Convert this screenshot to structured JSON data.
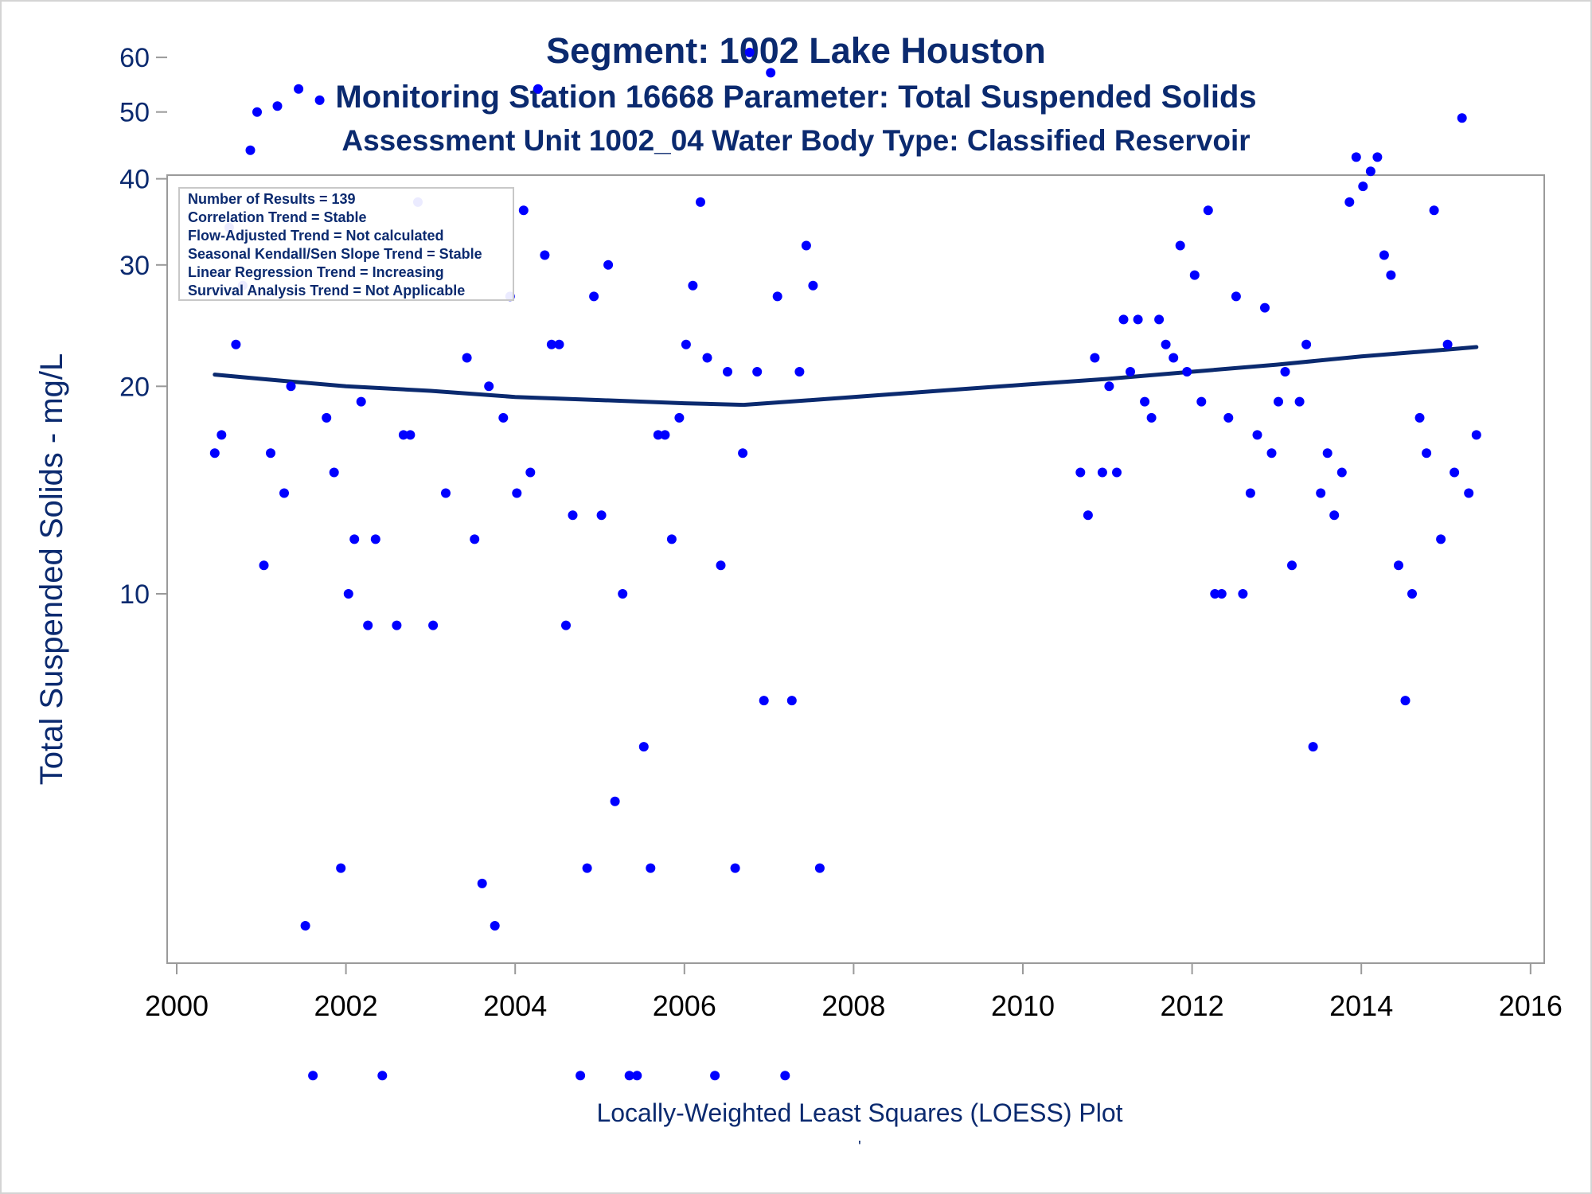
{
  "chart_data": {
    "type": "scatter",
    "title": "Segment: 1002  Lake Houston",
    "subtitle": "Monitoring Station 16668 Parameter: Total Suspended Solids",
    "subtitle2": "Assessment Unit 1002_04   Water Body Type: Classified Reservoir",
    "ylabel": "Total Suspended Solids - mg/L",
    "xlabel": "",
    "footnote": "Locally-Weighted Least Squares (LOESS) Plot",
    "footnote_mark": "'",
    "yscale": "log",
    "ylim": [
      2,
      60
    ],
    "xlim": [
      2000,
      2016.2
    ],
    "x_ticks": [
      "2000",
      "2002",
      "2004",
      "2006",
      "2008",
      "2010",
      "2012",
      "2014",
      "2016"
    ],
    "y_ticks": [
      "10",
      "20",
      "30",
      "40",
      "50",
      "60"
    ],
    "grid": false,
    "legend_position": "top-left",
    "stats_lines": [
      "Number of Results = 139",
      "Correlation Trend = Stable",
      "Flow-Adjusted Trend = Not calculated",
      "Seasonal Kendall/Sen Slope Trend = Stable",
      "Linear Regression Trend = Increasing",
      "Survival Analysis Trend = Not Applicable"
    ],
    "colors": {
      "points": "#0000ff",
      "loess": "#0b2a6f",
      "text": "#0b2a6f",
      "axis": "#9a9a9a"
    },
    "points": [
      [
        2000.45,
        16
      ],
      [
        2000.53,
        17
      ],
      [
        2000.62,
        34
      ],
      [
        2000.7,
        23
      ],
      [
        2000.78,
        28
      ],
      [
        2000.87,
        44
      ],
      [
        2000.95,
        50
      ],
      [
        2001.03,
        11
      ],
      [
        2001.11,
        16
      ],
      [
        2001.19,
        51
      ],
      [
        2001.27,
        14
      ],
      [
        2001.35,
        20
      ],
      [
        2001.44,
        54
      ],
      [
        2001.52,
        3.3
      ],
      [
        2001.61,
        2
      ],
      [
        2001.69,
        52
      ],
      [
        2001.77,
        18
      ],
      [
        2001.86,
        15
      ],
      [
        2001.94,
        4
      ],
      [
        2002.03,
        10
      ],
      [
        2002.1,
        12
      ],
      [
        2002.18,
        19
      ],
      [
        2002.26,
        9
      ],
      [
        2002.35,
        12
      ],
      [
        2002.43,
        2
      ],
      [
        2002.6,
        9
      ],
      [
        2002.68,
        17
      ],
      [
        2002.76,
        17
      ],
      [
        2002.85,
        37
      ],
      [
        2003.03,
        9
      ],
      [
        2003.18,
        14
      ],
      [
        2003.43,
        22
      ],
      [
        2003.52,
        12
      ],
      [
        2003.61,
        3.8
      ],
      [
        2003.69,
        20
      ],
      [
        2003.76,
        3.3
      ],
      [
        2003.86,
        18
      ],
      [
        2003.94,
        27
      ],
      [
        2004.02,
        14
      ],
      [
        2004.1,
        36
      ],
      [
        2004.18,
        15
      ],
      [
        2004.27,
        54
      ],
      [
        2004.35,
        31
      ],
      [
        2004.43,
        23
      ],
      [
        2004.52,
        23
      ],
      [
        2004.6,
        9
      ],
      [
        2004.68,
        13
      ],
      [
        2004.77,
        2
      ],
      [
        2004.85,
        4
      ],
      [
        2004.93,
        27
      ],
      [
        2005.02,
        13
      ],
      [
        2005.1,
        30
      ],
      [
        2005.18,
        5
      ],
      [
        2005.27,
        10
      ],
      [
        2005.35,
        2
      ],
      [
        2005.44,
        2
      ],
      [
        2005.52,
        6
      ],
      [
        2005.6,
        4
      ],
      [
        2005.69,
        17
      ],
      [
        2005.77,
        17
      ],
      [
        2005.85,
        12
      ],
      [
        2005.94,
        18
      ],
      [
        2006.02,
        23
      ],
      [
        2006.1,
        28
      ],
      [
        2006.19,
        37
      ],
      [
        2006.27,
        22
      ],
      [
        2006.36,
        2
      ],
      [
        2006.43,
        11
      ],
      [
        2006.51,
        21
      ],
      [
        2006.6,
        4
      ],
      [
        2006.69,
        16
      ],
      [
        2006.77,
        61
      ],
      [
        2006.86,
        21
      ],
      [
        2006.94,
        7
      ],
      [
        2007.02,
        57
      ],
      [
        2007.1,
        27
      ],
      [
        2007.19,
        2
      ],
      [
        2007.27,
        7
      ],
      [
        2007.36,
        21
      ],
      [
        2007.44,
        32
      ],
      [
        2007.52,
        28
      ],
      [
        2007.6,
        4
      ],
      [
        2010.68,
        15
      ],
      [
        2010.77,
        13
      ],
      [
        2010.85,
        22
      ],
      [
        2010.94,
        15
      ],
      [
        2011.02,
        20
      ],
      [
        2011.11,
        15
      ],
      [
        2011.19,
        25
      ],
      [
        2011.27,
        21
      ],
      [
        2011.36,
        25
      ],
      [
        2011.44,
        19
      ],
      [
        2011.52,
        18
      ],
      [
        2011.61,
        25
      ],
      [
        2011.69,
        23
      ],
      [
        2011.78,
        22
      ],
      [
        2011.86,
        32
      ],
      [
        2011.94,
        21
      ],
      [
        2012.03,
        29
      ],
      [
        2012.11,
        19
      ],
      [
        2012.19,
        36
      ],
      [
        2012.27,
        10
      ],
      [
        2012.35,
        10
      ],
      [
        2012.43,
        18
      ],
      [
        2012.52,
        27
      ],
      [
        2012.6,
        10
      ],
      [
        2012.69,
        14
      ],
      [
        2012.77,
        17
      ],
      [
        2012.86,
        26
      ],
      [
        2012.94,
        16
      ],
      [
        2013.02,
        19
      ],
      [
        2013.1,
        21
      ],
      [
        2013.18,
        11
      ],
      [
        2013.27,
        19
      ],
      [
        2013.35,
        23
      ],
      [
        2013.43,
        6
      ],
      [
        2013.52,
        14
      ],
      [
        2013.6,
        16
      ],
      [
        2013.68,
        13
      ],
      [
        2013.77,
        15
      ],
      [
        2013.86,
        37
      ],
      [
        2013.94,
        43
      ],
      [
        2014.02,
        39
      ],
      [
        2014.11,
        41
      ],
      [
        2014.19,
        43
      ],
      [
        2014.27,
        31
      ],
      [
        2014.35,
        29
      ],
      [
        2014.44,
        11
      ],
      [
        2014.52,
        7
      ],
      [
        2014.6,
        10
      ],
      [
        2014.69,
        18
      ],
      [
        2014.77,
        16
      ],
      [
        2014.86,
        36
      ],
      [
        2014.94,
        12
      ],
      [
        2015.02,
        23
      ],
      [
        2015.1,
        15
      ],
      [
        2015.19,
        49
      ],
      [
        2015.27,
        14
      ],
      [
        2015.36,
        17
      ]
    ],
    "loess": [
      [
        2000.45,
        20.8
      ],
      [
        2001.0,
        20.5
      ],
      [
        2002.0,
        20.0
      ],
      [
        2003.0,
        19.7
      ],
      [
        2004.0,
        19.3
      ],
      [
        2005.0,
        19.1
      ],
      [
        2006.0,
        18.9
      ],
      [
        2006.7,
        18.8
      ],
      [
        2007.5,
        19.1
      ],
      [
        2008.0,
        19.3
      ],
      [
        2009.0,
        19.7
      ],
      [
        2010.0,
        20.1
      ],
      [
        2011.0,
        20.5
      ],
      [
        2012.0,
        21.0
      ],
      [
        2013.0,
        21.5
      ],
      [
        2014.0,
        22.1
      ],
      [
        2015.0,
        22.6
      ],
      [
        2015.36,
        22.8
      ]
    ]
  }
}
